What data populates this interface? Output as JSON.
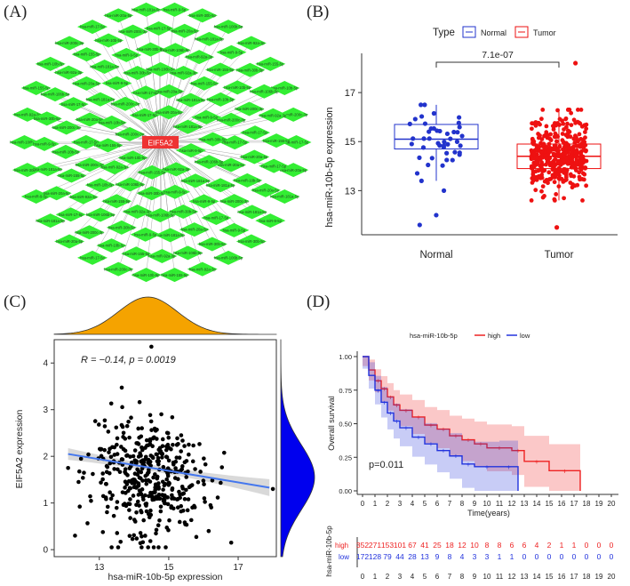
{
  "panels": {
    "a": "(A)",
    "b": "(B)",
    "c": "(C)",
    "d": "(D)"
  },
  "colors": {
    "node": "#33ee33",
    "hub": "#ee3333",
    "normal": "#2233cc",
    "tumor": "#ee1111",
    "orange": "#f5a300",
    "blue": "#0000ee",
    "reg": "#4477ee",
    "high": "#ee2222",
    "low": "#2233dd"
  },
  "chart_data": [
    {
      "type": "network",
      "panel": "A",
      "hub": "EIF5A2",
      "node_label_pattern": "hsa-miR-…",
      "visible_labels": [
        "hsa-miR-17-5p",
        "hsa-miR-20a-5p",
        "hsa-miR-181a-5p",
        "hsa-miR-9-5p",
        "hsa-miR-30b-5p",
        "hsa-miR-106b-5p",
        "hsa-miR-92a-3p",
        "hsa-miR-155-5p",
        "hsa-miR-10b-5p",
        "hsa-miR-200c-3p"
      ]
    },
    {
      "type": "boxplot",
      "panel": "B",
      "legend_title": "Type",
      "legend": [
        "Normal",
        "Tumor"
      ],
      "categories": [
        "Normal",
        "Tumor"
      ],
      "ylabel": "hsa-miR-10b-5p expression",
      "ylim": [
        11.2,
        18.6
      ],
      "yticks": [
        13,
        15,
        17
      ],
      "pvalue": "7.1e-07",
      "boxes": [
        {
          "name": "Normal",
          "min": 13.4,
          "q1": 14.7,
          "median": 15.1,
          "q3": 15.7,
          "max": 16.5
        },
        {
          "name": "Tumor",
          "min": 12.6,
          "q1": 13.9,
          "median": 14.4,
          "q3": 14.9,
          "max": 16.3
        }
      ],
      "outliers": {
        "Normal": [
          13.0,
          12.0,
          11.6
        ],
        "Tumor": [
          18.2,
          11.5
        ]
      }
    },
    {
      "type": "scatter",
      "panel": "C",
      "annotation": "R = −0.14, p = 0.0019",
      "xlabel": "hsa-miR-10b-5p expression",
      "ylabel": "EIF5A2 expression",
      "xlim": [
        11.7,
        18.1
      ],
      "ylim": [
        -0.15,
        4.5
      ],
      "xticks": [
        13,
        15,
        17
      ],
      "yticks": [
        0,
        1,
        2,
        3,
        4
      ],
      "regression": {
        "x0": 12.1,
        "y0": 2.05,
        "x1": 17.9,
        "y1": 1.33
      },
      "n": 420,
      "marginal_x": {
        "mean": 14.4,
        "sd": 0.85
      },
      "marginal_y": {
        "mean": 1.55,
        "sd": 0.7
      }
    },
    {
      "type": "line",
      "panel": "D",
      "legend_title": "hsa-miR-10b-5p",
      "legend": [
        "high",
        "low"
      ],
      "ylabel": "Overall survival",
      "xlabel": "Time(years)",
      "xlim": [
        0,
        20
      ],
      "ylim": [
        0,
        1
      ],
      "yticks": [
        "0.00",
        "0.25",
        "0.50",
        "0.75",
        "1.00"
      ],
      "xticks": [
        "0",
        "1",
        "2",
        "3",
        "4",
        "5",
        "6",
        "7",
        "8",
        "9",
        "10",
        "11",
        "12",
        "13",
        "14",
        "15",
        "16",
        "17",
        "18",
        "19",
        "20"
      ],
      "pvalue": "p=0.011",
      "series": [
        {
          "name": "high",
          "x": [
            0,
            0.5,
            1,
            1.5,
            2,
            2.5,
            3,
            4,
            5,
            6,
            7,
            8,
            9,
            10,
            12,
            13,
            15,
            17.5
          ],
          "y": [
            1.0,
            0.9,
            0.82,
            0.76,
            0.7,
            0.64,
            0.6,
            0.55,
            0.49,
            0.46,
            0.41,
            0.38,
            0.35,
            0.32,
            0.3,
            0.22,
            0.15,
            0.0
          ]
        },
        {
          "name": "low",
          "x": [
            0,
            0.5,
            1,
            1.5,
            2,
            2.5,
            3,
            4,
            5,
            6,
            7,
            8,
            9,
            11,
            12.5
          ],
          "y": [
            1.0,
            0.86,
            0.75,
            0.66,
            0.58,
            0.52,
            0.47,
            0.4,
            0.35,
            0.3,
            0.26,
            0.2,
            0.18,
            0.18,
            0.0
          ]
        }
      ],
      "risk_table": {
        "ylabel": "hsa-miR-10b-5p",
        "high": [
          "352",
          "271",
          "153",
          "101",
          "67",
          "41",
          "25",
          "18",
          "12",
          "10",
          "8",
          "8",
          "6",
          "6",
          "4",
          "2",
          "1",
          "1",
          "0",
          "0",
          "0"
        ],
        "low": [
          "172",
          "128",
          "79",
          "44",
          "28",
          "13",
          "9",
          "8",
          "4",
          "3",
          "3",
          "1",
          "1",
          "0",
          "0",
          "0",
          "0",
          "0",
          "0",
          "0",
          "0"
        ]
      }
    }
  ]
}
